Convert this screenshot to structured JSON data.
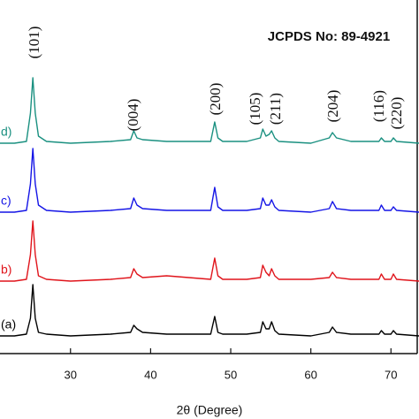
{
  "chart_data": {
    "type": "line",
    "title": "JCPDS No: 89-4921",
    "x_label": "2θ (Degree)",
    "x": [
      21,
      23,
      24.5,
      25.0,
      25.3,
      25.6,
      26,
      27,
      30,
      35,
      37.5,
      37.9,
      38.3,
      39,
      42,
      47.5,
      48.0,
      48.4,
      49,
      52,
      53.7,
      54.0,
      54.4,
      54.8,
      55.1,
      55.5,
      56,
      60,
      62.3,
      62.7,
      63.2,
      65,
      68.5,
      68.8,
      69.2,
      70.0,
      70.3,
      70.7,
      73.5
    ],
    "series": [
      {
        "name": "(a)",
        "color": "#000000",
        "values": [
          5,
          5,
          5.5,
          10,
          19.5,
          10,
          6,
          5.5,
          5,
          5.5,
          6,
          8,
          7,
          6,
          5.5,
          5.5,
          10.5,
          6,
          5.5,
          5.5,
          6,
          9,
          7,
          7,
          9,
          6.5,
          5.5,
          5,
          6,
          7.5,
          6,
          5.5,
          5.5,
          6.5,
          5.5,
          5.5,
          6.5,
          5.5,
          5
        ]
      },
      {
        "name": "b)",
        "color": "#e0141b",
        "values": [
          20.5,
          20.5,
          21,
          28,
          37.5,
          28,
          22,
          21,
          20.5,
          21,
          21.5,
          24,
          22.5,
          21.5,
          22,
          21,
          27,
          22,
          21,
          21,
          21.5,
          25,
          23,
          22,
          24,
          22,
          21,
          21,
          21.5,
          23,
          21.5,
          21,
          21,
          22.5,
          21,
          21,
          22.5,
          21,
          20.5
        ]
      },
      {
        "name": "c)",
        "color": "#1414e6",
        "values": [
          40,
          40,
          40.5,
          48,
          58,
          48,
          42,
          40.5,
          40,
          40.5,
          41,
          44,
          42,
          41,
          40.5,
          40.5,
          47,
          41.5,
          40.5,
          40.5,
          41,
          44,
          42,
          42,
          43.5,
          41.5,
          40.5,
          40,
          41,
          43,
          41,
          40.5,
          40.5,
          42,
          40.5,
          40.5,
          41.5,
          40.5,
          40
        ]
      },
      {
        "name": "d)",
        "color": "#1a9080",
        "values": [
          59.5,
          59.5,
          60,
          68,
          78,
          68,
          61.5,
          60,
          59.5,
          60,
          60.5,
          63,
          61,
          60.5,
          60,
          60,
          65.5,
          61,
          60,
          60,
          61,
          63.5,
          61.5,
          62,
          63,
          61,
          60,
          59.5,
          61,
          62.5,
          61,
          60,
          60,
          61,
          60,
          60,
          61,
          60,
          59.5
        ]
      }
    ],
    "peak_labels": [
      "(101)",
      "(004)",
      "(200)",
      "(105)",
      "(211)",
      "(204)",
      "(116)",
      "(220)"
    ],
    "xlim": [
      21.2,
      73.5
    ],
    "xticks": [
      30,
      40,
      50,
      60,
      70
    ],
    "ylim": [
      0,
      100
    ]
  }
}
